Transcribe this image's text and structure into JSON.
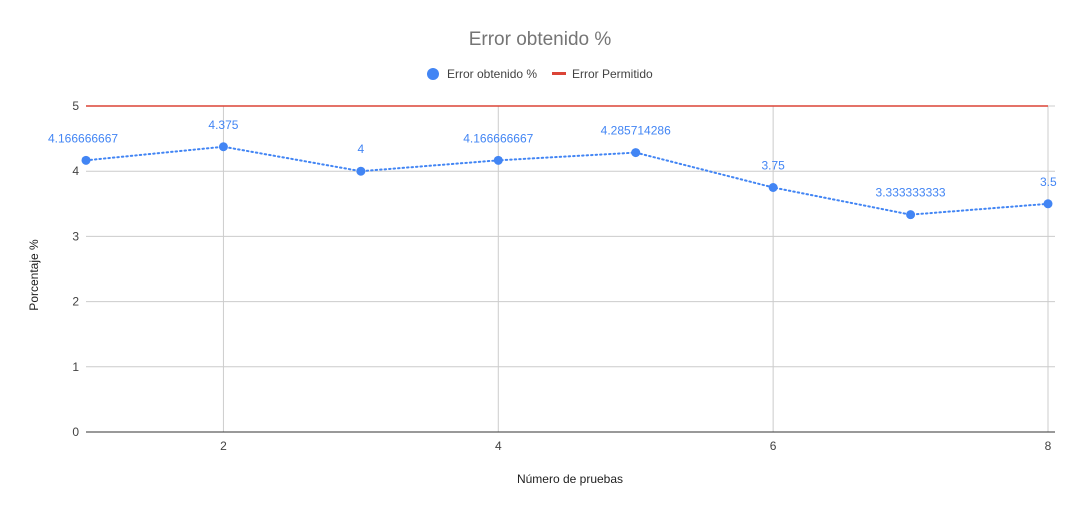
{
  "chart_data": {
    "type": "line",
    "title": "Error obtenido %",
    "xlabel": "Número de pruebas",
    "ylabel": "Porcentaje %",
    "x": [
      1,
      2,
      3,
      4,
      5,
      6,
      7,
      8
    ],
    "xlim": [
      1,
      8
    ],
    "ylim": [
      0,
      5
    ],
    "x_ticks": [
      2,
      4,
      6,
      8
    ],
    "y_ticks": [
      0,
      1,
      2,
      3,
      4,
      5
    ],
    "grid": true,
    "legend_position": "top",
    "series": [
      {
        "name": "Error obtenido %",
        "color": "#4285f4",
        "style": "dotted-line-with-points",
        "values": [
          4.166666667,
          4.375,
          4,
          4.166666667,
          4.285714286,
          3.75,
          3.333333333,
          3.5
        ],
        "labels": [
          "4.166666667",
          "4.375",
          "4",
          "4.166666667",
          "4.285714286",
          "3.75",
          "3.333333333",
          "3.5"
        ]
      },
      {
        "name": "Error Permitido",
        "color": "#db4437",
        "style": "solid-line",
        "values": [
          5,
          5,
          5,
          5,
          5,
          5,
          5,
          5
        ]
      }
    ]
  },
  "colors": {
    "grid": "#cccccc",
    "baseline": "#333333",
    "title": "#757575"
  }
}
